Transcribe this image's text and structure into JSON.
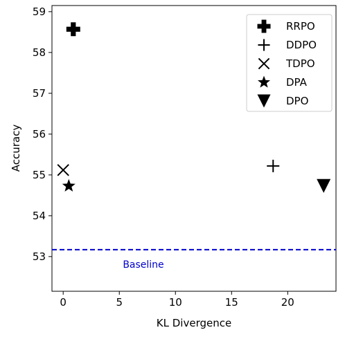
{
  "chart_data": {
    "type": "scatter",
    "xlabel": "KL Divergence",
    "ylabel": "Accuracy",
    "xlim": [
      -1.0,
      24.3
    ],
    "ylim": [
      52.15,
      59.15
    ],
    "xticks": [
      0,
      5,
      10,
      15,
      20
    ],
    "yticks": [
      53,
      54,
      55,
      56,
      57,
      58,
      59
    ],
    "series": [
      {
        "name": "RRPO",
        "marker": "thick-plus",
        "points": [
          {
            "x": 0.9,
            "y": 58.57
          }
        ]
      },
      {
        "name": "DDPO",
        "marker": "plus",
        "points": [
          {
            "x": 18.7,
            "y": 55.22
          }
        ]
      },
      {
        "name": "TDPO",
        "marker": "x",
        "points": [
          {
            "x": 0.0,
            "y": 55.12
          }
        ]
      },
      {
        "name": "DPA",
        "marker": "star",
        "points": [
          {
            "x": 0.5,
            "y": 54.73
          }
        ]
      },
      {
        "name": "DPO",
        "marker": "triangle-down",
        "points": [
          {
            "x": 23.2,
            "y": 54.73
          }
        ]
      }
    ],
    "baseline": {
      "y": 53.17,
      "label": "Baseline",
      "color": "#0000cc",
      "style": "dashed"
    },
    "legend_position": "top-right",
    "grid": false
  }
}
